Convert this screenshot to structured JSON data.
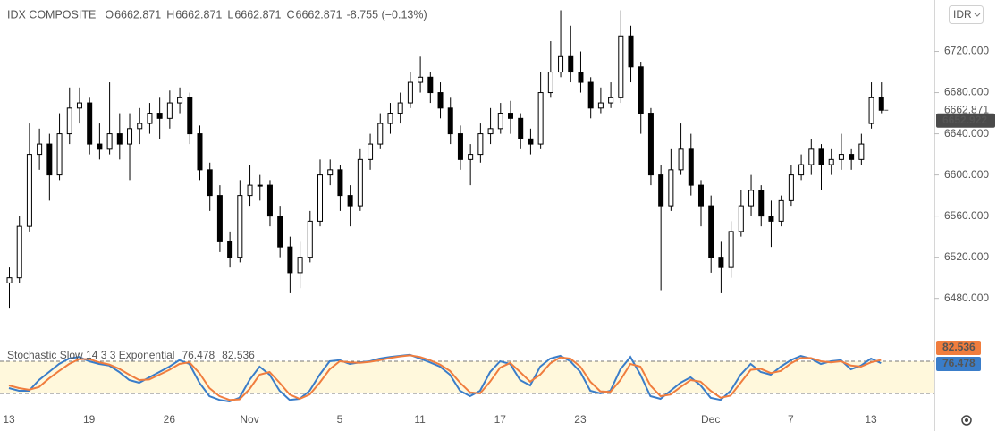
{
  "header": {
    "symbol": "IDX COMPOSITE",
    "o_label": "O",
    "open": 6662.871,
    "h_label": "H",
    "high": 6662.871,
    "l_label": "L",
    "low": 6662.871,
    "c_label": "C",
    "close": 6662.871,
    "change": "-8.755 (−0.13%)"
  },
  "currency_button": "IDR",
  "chart_data": [
    {
      "type": "candlestick",
      "up_color": "#ffffff",
      "down_color": "#000000",
      "border_color": "#000000",
      "categories": [
        "13",
        null,
        null,
        null,
        null,
        null,
        null,
        null,
        "19",
        null,
        null,
        null,
        null,
        null,
        null,
        null,
        "26",
        null,
        null,
        null,
        null,
        null,
        null,
        null,
        "Nov",
        null,
        null,
        null,
        null,
        null,
        null,
        null,
        null,
        "5",
        null,
        null,
        null,
        null,
        null,
        null,
        null,
        "11",
        null,
        null,
        null,
        null,
        null,
        null,
        null,
        "17",
        null,
        null,
        null,
        null,
        null,
        null,
        null,
        "23",
        null,
        null,
        null,
        null,
        null,
        null,
        null,
        null,
        null,
        null,
        null,
        null,
        "Dec",
        null,
        null,
        null,
        null,
        null,
        null,
        null,
        "7",
        null,
        null,
        null,
        null,
        null,
        null,
        null,
        "13",
        null,
        null
      ],
      "candles": [
        [
          6495,
          6510,
          6470,
          6500
        ],
        [
          6500,
          6560,
          6495,
          6550
        ],
        [
          6550,
          6650,
          6545,
          6620
        ],
        [
          6620,
          6645,
          6605,
          6630
        ],
        [
          6630,
          6640,
          6575,
          6600
        ],
        [
          6600,
          6660,
          6595,
          6640
        ],
        [
          6640,
          6685,
          6630,
          6665
        ],
        [
          6665,
          6685,
          6650,
          6670
        ],
        [
          6670,
          6675,
          6620,
          6630
        ],
        [
          6630,
          6650,
          6615,
          6625
        ],
        [
          6625,
          6690,
          6620,
          6640
        ],
        [
          6640,
          6660,
          6615,
          6630
        ],
        [
          6630,
          6660,
          6595,
          6645
        ],
        [
          6645,
          6665,
          6630,
          6650
        ],
        [
          6650,
          6670,
          6640,
          6660
        ],
        [
          6660,
          6675,
          6635,
          6655
        ],
        [
          6655,
          6682,
          6645,
          6670
        ],
        [
          6670,
          6685,
          6660,
          6675
        ],
        [
          6675,
          6680,
          6630,
          6640
        ],
        [
          6640,
          6648,
          6595,
          6605
        ],
        [
          6605,
          6612,
          6565,
          6580
        ],
        [
          6580,
          6590,
          6525,
          6535
        ],
        [
          6535,
          6545,
          6510,
          6520
        ],
        [
          6520,
          6595,
          6515,
          6580
        ],
        [
          6580,
          6610,
          6570,
          6590
        ],
        [
          6590,
          6600,
          6575,
          6590
        ],
        [
          6590,
          6595,
          6550,
          6560
        ],
        [
          6560,
          6570,
          6520,
          6530
        ],
        [
          6530,
          6540,
          6485,
          6505
        ],
        [
          6505,
          6535,
          6490,
          6520
        ],
        [
          6520,
          6565,
          6515,
          6555
        ],
        [
          6555,
          6615,
          6550,
          6600
        ],
        [
          6600,
          6615,
          6590,
          6605
        ],
        [
          6605,
          6610,
          6565,
          6580
        ],
        [
          6580,
          6590,
          6550,
          6570
        ],
        [
          6570,
          6625,
          6565,
          6615
        ],
        [
          6615,
          6640,
          6605,
          6630
        ],
        [
          6630,
          6660,
          6625,
          6650
        ],
        [
          6650,
          6670,
          6640,
          6660
        ],
        [
          6660,
          6680,
          6650,
          6670
        ],
        [
          6670,
          6700,
          6665,
          6690
        ],
        [
          6690,
          6715,
          6680,
          6695
        ],
        [
          6695,
          6700,
          6670,
          6680
        ],
        [
          6680,
          6690,
          6655,
          6665
        ],
        [
          6665,
          6675,
          6630,
          6640
        ],
        [
          6640,
          6648,
          6605,
          6615
        ],
        [
          6615,
          6630,
          6590,
          6620
        ],
        [
          6620,
          6650,
          6612,
          6640
        ],
        [
          6640,
          6665,
          6630,
          6645
        ],
        [
          6645,
          6670,
          6640,
          6660
        ],
        [
          6660,
          6672,
          6640,
          6655
        ],
        [
          6655,
          6660,
          6625,
          6635
        ],
        [
          6635,
          6645,
          6620,
          6630
        ],
        [
          6630,
          6700,
          6625,
          6680
        ],
        [
          6680,
          6730,
          6675,
          6700
        ],
        [
          6700,
          6760,
          6695,
          6715
        ],
        [
          6715,
          6745,
          6690,
          6700
        ],
        [
          6700,
          6720,
          6680,
          6690
        ],
        [
          6690,
          6695,
          6655,
          6665
        ],
        [
          6665,
          6685,
          6660,
          6670
        ],
        [
          6670,
          6690,
          6665,
          6675
        ],
        [
          6675,
          6760,
          6670,
          6735
        ],
        [
          6735,
          6745,
          6690,
          6705
        ],
        [
          6705,
          6710,
          6640,
          6660
        ],
        [
          6660,
          6665,
          6590,
          6600
        ],
        [
          6600,
          6610,
          6488,
          6570
        ],
        [
          6570,
          6625,
          6565,
          6605
        ],
        [
          6605,
          6650,
          6600,
          6625
        ],
        [
          6625,
          6640,
          6580,
          6590
        ],
        [
          6590,
          6595,
          6550,
          6570
        ],
        [
          6570,
          6580,
          6505,
          6520
        ],
        [
          6520,
          6535,
          6485,
          6510
        ],
        [
          6510,
          6555,
          6500,
          6545
        ],
        [
          6545,
          6585,
          6540,
          6570
        ],
        [
          6570,
          6600,
          6560,
          6585
        ],
        [
          6585,
          6590,
          6550,
          6560
        ],
        [
          6560,
          6575,
          6530,
          6555
        ],
        [
          6555,
          6580,
          6550,
          6575
        ],
        [
          6575,
          6610,
          6570,
          6600
        ],
        [
          6600,
          6620,
          6595,
          6610
        ],
        [
          6610,
          6635,
          6600,
          6625
        ],
        [
          6625,
          6630,
          6585,
          6610
        ],
        [
          6610,
          6625,
          6600,
          6615
        ],
        [
          6615,
          6640,
          6605,
          6620
        ],
        [
          6620,
          6625,
          6605,
          6615
        ],
        [
          6615,
          6640,
          6610,
          6630
        ],
        [
          6650,
          6690,
          6645,
          6675
        ],
        [
          6675,
          6690,
          6660,
          6662.871
        ]
      ],
      "price_line": 6652.922,
      "ylim": [
        6438,
        6770
      ],
      "yticks": [
        {
          "value": 6480,
          "label": "6480.000"
        },
        {
          "value": 6520,
          "label": "6520.000"
        },
        {
          "value": 6560,
          "label": "6560.000"
        },
        {
          "value": 6600,
          "label": "6600.000"
        },
        {
          "value": 6640,
          "label": "6640.000"
        },
        {
          "value": 6680,
          "label": "6680.000"
        },
        {
          "value": 6720,
          "label": "6720.000"
        }
      ],
      "grid": false
    },
    {
      "type": "line",
      "title": "Stochastic Slow 14 3 3 Exponential",
      "series": [
        {
          "color": "#3a7dc9",
          "values": [
            30,
            25,
            25,
            45,
            60,
            75,
            85,
            88,
            80,
            75,
            72,
            60,
            45,
            40,
            50,
            60,
            70,
            82,
            75,
            40,
            15,
            8,
            5,
            12,
            45,
            70,
            55,
            25,
            8,
            10,
            25,
            55,
            80,
            82,
            75,
            78,
            80,
            85,
            88,
            90,
            92,
            85,
            78,
            70,
            55,
            25,
            15,
            25,
            60,
            80,
            75,
            45,
            35,
            70,
            85,
            90,
            80,
            60,
            25,
            20,
            25,
            65,
            88,
            55,
            15,
            10,
            25,
            40,
            50,
            35,
            12,
            8,
            25,
            55,
            75,
            60,
            55,
            70,
            82,
            90,
            85,
            75,
            80,
            82,
            65,
            72,
            85,
            76.478
          ]
        },
        {
          "color": "#f07d3e",
          "values": [
            35,
            30,
            27,
            32,
            48,
            62,
            75,
            84,
            84,
            78,
            74,
            66,
            55,
            45,
            46,
            55,
            64,
            75,
            78,
            58,
            30,
            15,
            8,
            9,
            28,
            55,
            60,
            40,
            18,
            10,
            18,
            40,
            65,
            80,
            78,
            77,
            79,
            82,
            86,
            89,
            91,
            88,
            82,
            74,
            62,
            40,
            22,
            20,
            42,
            68,
            77,
            60,
            42,
            55,
            76,
            87,
            85,
            70,
            42,
            24,
            23,
            45,
            75,
            70,
            35,
            15,
            18,
            32,
            45,
            42,
            25,
            12,
            16,
            40,
            64,
            66,
            58,
            62,
            76,
            86,
            86,
            80,
            78,
            80,
            72,
            70,
            78,
            82.536
          ]
        }
      ],
      "bands": [
        20,
        80
      ],
      "band_color": "#fff8dc",
      "ylim": [
        -10,
        115
      ]
    }
  ]
}
